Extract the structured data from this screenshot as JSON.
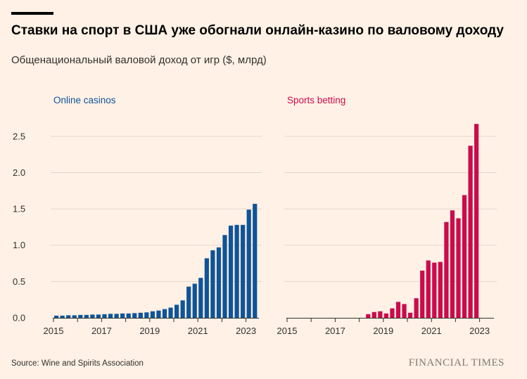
{
  "title": "Ставки на спорт в США уже обогнали онлайн-казино по валовому доходу",
  "subtitle": "Общенациональный валовой доход от игр ($, млрд)",
  "source": "Source: Wine and Spirits Association",
  "brand": "FINANCIAL TIMES",
  "colors": {
    "online_casinos": "#0f5499",
    "sports_betting": "#cc0a4c",
    "background": "#fff1e5",
    "grid": "#e2d7cc"
  },
  "chart_data": [
    {
      "type": "bar",
      "title": "Online casinos",
      "ylim": [
        0,
        2.75
      ],
      "yticks": [
        "0.0",
        "0.5",
        "1.0",
        "1.5",
        "2.0",
        "2.5"
      ],
      "xtick_labels": [
        "2015",
        "2017",
        "2019",
        "2021",
        "2023"
      ],
      "grid": true,
      "x_start": "2015-Q1",
      "values": [
        0.03,
        0.03,
        0.035,
        0.035,
        0.04,
        0.04,
        0.045,
        0.045,
        0.05,
        0.055,
        0.055,
        0.06,
        0.06,
        0.065,
        0.07,
        0.075,
        0.09,
        0.1,
        0.12,
        0.14,
        0.18,
        0.24,
        0.43,
        0.47,
        0.55,
        0.82,
        0.93,
        0.97,
        1.14,
        1.27,
        1.28,
        1.28,
        1.49,
        1.57
      ]
    },
    {
      "type": "bar",
      "title": "Sports betting",
      "ylim": [
        0,
        2.75
      ],
      "xtick_labels": [
        "2015",
        "2017",
        "2019",
        "2021",
        "2023"
      ],
      "grid": true,
      "x_start": "2015-Q1",
      "values": [
        0,
        0,
        0,
        0,
        0,
        0,
        0,
        0,
        0,
        0,
        0,
        0,
        0,
        0.05,
        0.08,
        0.09,
        0.06,
        0.13,
        0.22,
        0.19,
        0.07,
        0.27,
        0.65,
        0.79,
        0.76,
        0.77,
        1.32,
        1.48,
        1.37,
        1.69,
        2.37,
        2.67
      ]
    }
  ]
}
